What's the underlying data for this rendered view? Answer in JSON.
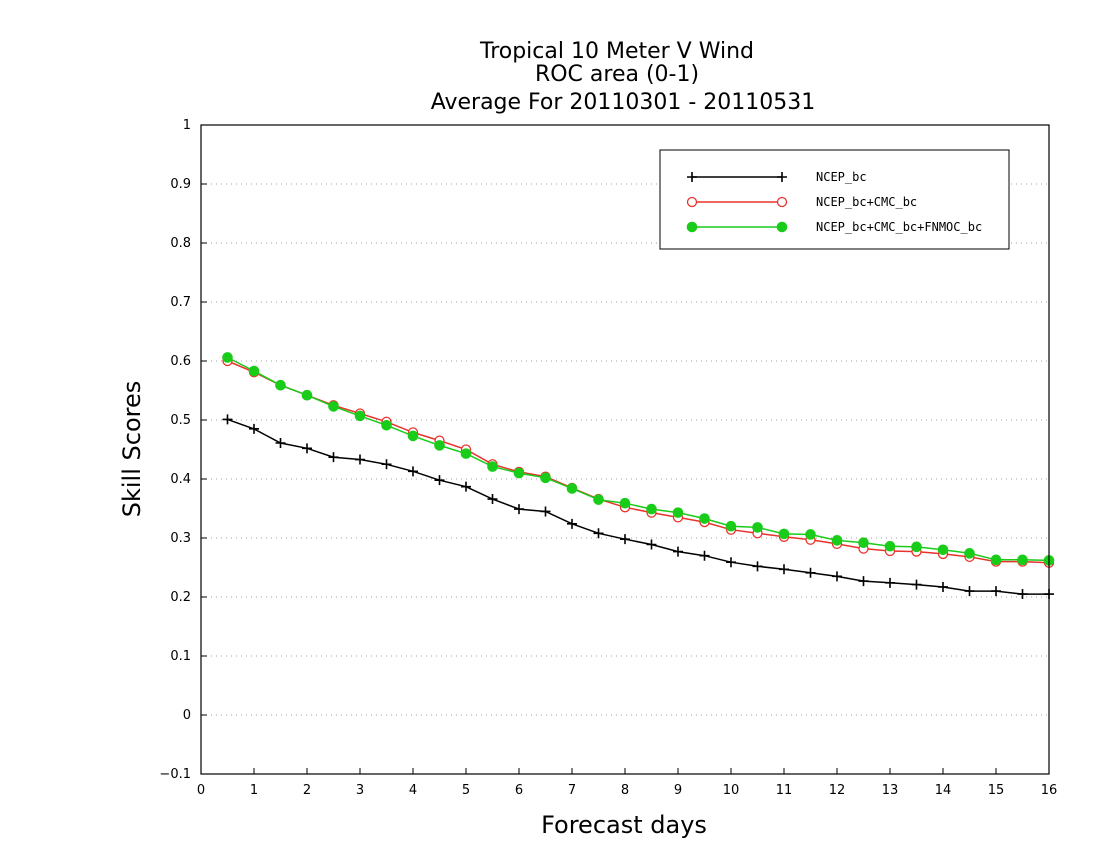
{
  "colors": {
    "NCEP_bc": "#000000",
    "NCEP_bc+CMC_bc": "#e8332c",
    "NCEP_bc+CMC_bc+FNMOC_bc": "#19cc19",
    "grid": "#a0a0a0"
  },
  "chart_data": {
    "type": "line",
    "title_lines": [
      "Tropical 10 Meter V Wind",
      "ROC area (0-1)",
      "Average For 20110301 - 20110531"
    ],
    "xlabel": "Forecast days",
    "ylabel": "Skill Scores",
    "xlim": [
      0,
      16
    ],
    "ylim": [
      -0.1,
      1
    ],
    "xticks": [
      "0",
      "1",
      "2",
      "3",
      "4",
      "5",
      "6",
      "7",
      "8",
      "9",
      "10",
      "11",
      "12",
      "13",
      "14",
      "15",
      "16"
    ],
    "yticks": [
      "-0.1",
      "0",
      "0.1",
      "0.2",
      "0.3",
      "0.4",
      "0.5",
      "0.6",
      "0.7",
      "0.8",
      "0.9",
      "1"
    ],
    "grid": "horizontal dotted",
    "legend_position": "top-right",
    "x": [
      0.5,
      1,
      1.5,
      2,
      2.5,
      3,
      3.5,
      4,
      4.5,
      5,
      5.5,
      6,
      6.5,
      7,
      7.5,
      8,
      8.5,
      9,
      9.5,
      10,
      10.5,
      11,
      11.5,
      12,
      12.5,
      13,
      13.5,
      14,
      14.5,
      15,
      15.5,
      16
    ],
    "series": [
      {
        "name": "NCEP_bc",
        "marker": "plus",
        "values": [
          0.501,
          0.485,
          0.461,
          0.452,
          0.437,
          0.433,
          0.425,
          0.413,
          0.398,
          0.387,
          0.366,
          0.349,
          0.345,
          0.324,
          0.308,
          0.298,
          0.289,
          0.277,
          0.27,
          0.259,
          0.252,
          0.247,
          0.241,
          0.235,
          0.227,
          0.224,
          0.221,
          0.217,
          0.21,
          0.21,
          0.205,
          0.205
        ]
      },
      {
        "name": "NCEP_bc+CMC_bc",
        "marker": "open-circle",
        "values": [
          0.6,
          0.581,
          0.559,
          0.542,
          0.525,
          0.511,
          0.497,
          0.479,
          0.465,
          0.45,
          0.425,
          0.412,
          0.404,
          0.385,
          0.366,
          0.352,
          0.343,
          0.335,
          0.327,
          0.314,
          0.308,
          0.302,
          0.297,
          0.29,
          0.282,
          0.278,
          0.277,
          0.273,
          0.268,
          0.26,
          0.26,
          0.258
        ]
      },
      {
        "name": "NCEP_bc+CMC_bc+FNMOC_bc",
        "marker": "filled-circle",
        "values": [
          0.606,
          0.583,
          0.559,
          0.542,
          0.523,
          0.507,
          0.491,
          0.473,
          0.457,
          0.443,
          0.421,
          0.41,
          0.402,
          0.384,
          0.365,
          0.359,
          0.349,
          0.343,
          0.333,
          0.32,
          0.318,
          0.307,
          0.306,
          0.296,
          0.292,
          0.286,
          0.285,
          0.28,
          0.274,
          0.263,
          0.263,
          0.262
        ]
      }
    ]
  }
}
